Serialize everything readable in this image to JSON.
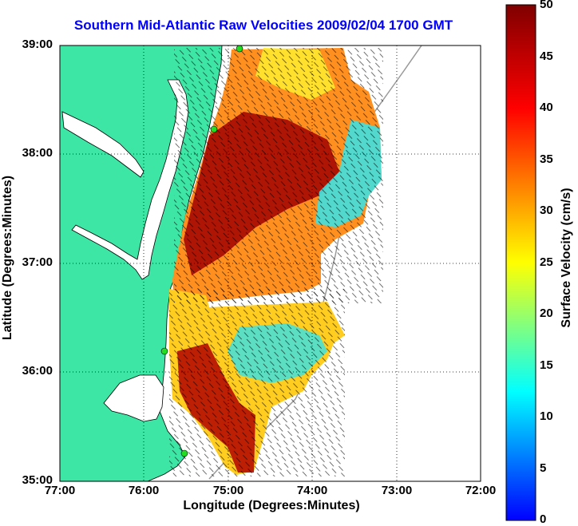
{
  "title": "Southern Mid-Atlantic Raw Velocities 2009/02/04 1700 GMT",
  "xlabel": "Longitude (Degrees:Minutes)",
  "ylabel": "Latitude (Degrees:Minutes)",
  "colorbar": {
    "label": "Surface Velocity (cm/s)",
    "ticks": [
      "50",
      "45",
      "40",
      "35",
      "30",
      "25",
      "20",
      "15",
      "10",
      "5",
      "0"
    ],
    "range": [
      0,
      50
    ],
    "colormap": "jet"
  },
  "axes": {
    "xticks": [
      "77:00",
      "76:00",
      "75:00",
      "74:00",
      "73:00",
      "72:00"
    ],
    "yticks": [
      "39:00",
      "38:00",
      "37:00",
      "36:00",
      "35:00"
    ],
    "xlim": [
      "77:00",
      "72:00"
    ],
    "ylim": [
      "35:00",
      "39:00"
    ],
    "grid": "dotted"
  },
  "colors": {
    "land": "#3ee6a6",
    "water": "#ffffff",
    "title": "#0000ff",
    "station": "#22dd22"
  },
  "chart_data": {
    "type": "heatmap",
    "title": "Southern Mid-Atlantic Raw Velocities 2009/02/04 1700 GMT",
    "xlabel": "Longitude (Degrees:Minutes)",
    "ylabel": "Latitude (Degrees:Minutes)",
    "clabel": "Surface Velocity (cm/s)",
    "clim": [
      0,
      50
    ]
  }
}
